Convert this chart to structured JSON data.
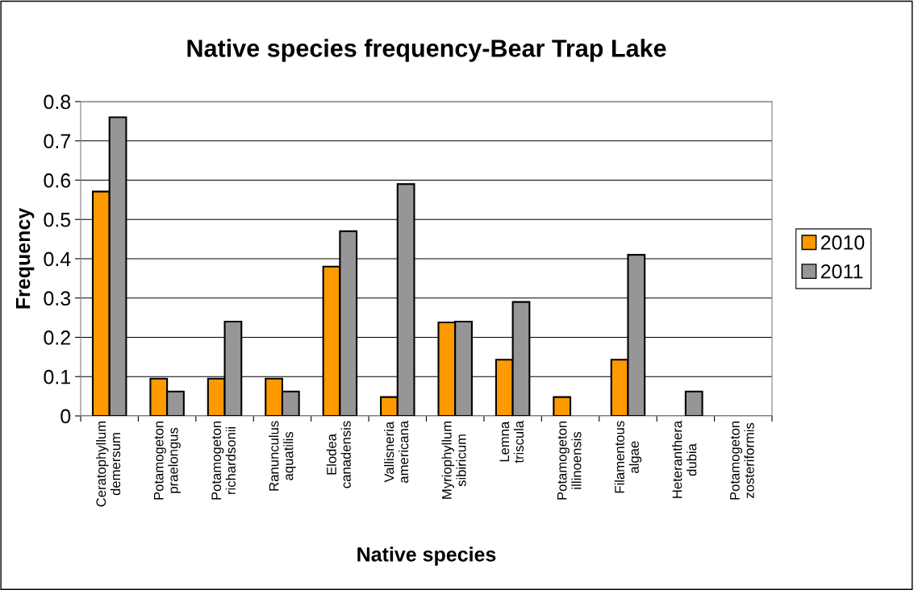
{
  "chart_data": {
    "type": "bar",
    "title": "Native species frequency-Bear Trap Lake",
    "xlabel": "Native species",
    "ylabel": "Frequency",
    "categories": [
      "Ceratophyllum\ndemersum",
      "Potamogeton\npraelongus",
      "Potamogeton\nrichardsonii",
      "Ranunculus\naquatilis",
      "Elodea\ncanadensis",
      "Vallisneria\namericana",
      "Myriophyllum\nsibiricum",
      "Lemna\ntriscula",
      "Potamogeton\nillinoensis",
      "Filamentous\nalgae",
      "Heteranthera\ndubia",
      "Potamogeton\nzosteriformis"
    ],
    "series": [
      {
        "name": "2010",
        "color": "#ff9900",
        "values": [
          0.571,
          0.095,
          0.095,
          0.095,
          0.38,
          0.048,
          0.238,
          0.143,
          0.048,
          0.143,
          null,
          null
        ]
      },
      {
        "name": "2011",
        "color": "#969696",
        "values": [
          0.76,
          0.062,
          0.24,
          0.062,
          0.47,
          0.59,
          0.24,
          0.29,
          null,
          0.41,
          0.062,
          null
        ]
      }
    ],
    "ylim": [
      0,
      0.8
    ],
    "yticks": [
      0,
      0.1,
      0.2,
      0.3,
      0.4,
      0.5,
      0.6,
      0.7,
      0.8
    ],
    "grid": "y",
    "legend": "right"
  }
}
